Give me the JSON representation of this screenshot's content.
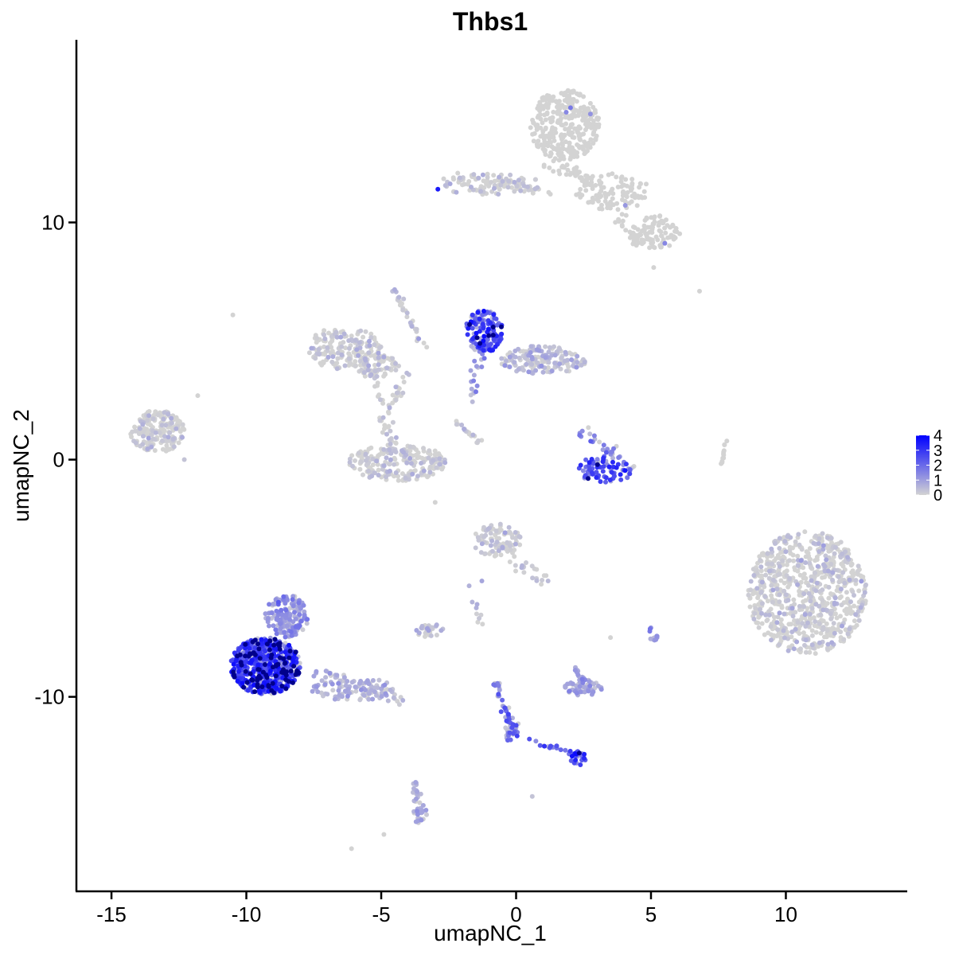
{
  "chart_data": {
    "type": "scatter",
    "title": "Thbs1",
    "xlabel": "umapNC_1",
    "ylabel": "umapNC_2",
    "xlim": [
      -16.3,
      14.5
    ],
    "ylim": [
      -18.2,
      17.7
    ],
    "x_ticks": [
      -15,
      -10,
      -5,
      0,
      5,
      10
    ],
    "x_tick_labels": [
      "-15",
      "-10",
      "-5",
      "0",
      "5",
      "10"
    ],
    "y_ticks": [
      -10,
      0,
      10
    ],
    "y_tick_labels": [
      "-10",
      "0",
      "10"
    ],
    "grid": false,
    "legend": {
      "position": "right",
      "values": [
        0,
        1,
        2,
        3,
        4
      ],
      "labels": [
        "0",
        "1",
        "2",
        "3",
        "4"
      ],
      "low_color": "#d3d3d3",
      "high_color": "#0000ff"
    },
    "colors": {
      "low": "#d3d3d3",
      "high": "#0000ff"
    },
    "clusters": [
      {
        "cx": 1.8,
        "cy": 14.1,
        "rx": 1.3,
        "ry": 1.5,
        "expr": 0.0,
        "count": 320
      },
      {
        "cx": -1.0,
        "cy": 11.6,
        "rx": 2.0,
        "ry": 0.45,
        "expr": 0.1,
        "count": 90
      },
      {
        "cx": 3.6,
        "cy": 11.3,
        "rx": 1.4,
        "ry": 0.8,
        "expr": 0.0,
        "count": 80
      },
      {
        "cx": 5.2,
        "cy": 9.6,
        "rx": 0.9,
        "ry": 0.7,
        "expr": 0.0,
        "count": 90
      },
      {
        "cx": 10.8,
        "cy": -5.6,
        "rx": 2.2,
        "ry": 2.6,
        "expr": 0.02,
        "count": 760
      },
      {
        "cx": -13.3,
        "cy": 1.2,
        "rx": 1.0,
        "ry": 0.9,
        "expr": 0.03,
        "count": 190
      },
      {
        "cx": -6.4,
        "cy": 4.7,
        "rx": 1.4,
        "ry": 0.9,
        "expr": 0.04,
        "count": 170
      },
      {
        "cx": -5.1,
        "cy": 3.9,
        "rx": 0.8,
        "ry": 0.5,
        "expr": 0.06,
        "count": 60
      },
      {
        "cx": -4.4,
        "cy": -0.1,
        "rx": 1.8,
        "ry": 0.8,
        "expr": 0.06,
        "count": 220
      },
      {
        "cx": -1.2,
        "cy": 5.4,
        "rx": 0.7,
        "ry": 0.9,
        "expr": 2.4,
        "count": 150
      },
      {
        "cx": 1.0,
        "cy": 4.2,
        "rx": 1.6,
        "ry": 0.6,
        "expr": 0.3,
        "count": 170
      },
      {
        "cx": 3.3,
        "cy": -0.4,
        "rx": 1.1,
        "ry": 0.55,
        "expr": 2.2,
        "count": 85
      },
      {
        "cx": -0.7,
        "cy": -3.4,
        "rx": 0.9,
        "ry": 0.7,
        "expr": 0.1,
        "count": 85
      },
      {
        "cx": -9.3,
        "cy": -8.7,
        "rx": 1.3,
        "ry": 1.2,
        "expr": 2.9,
        "count": 580
      },
      {
        "cx": -8.5,
        "cy": -6.6,
        "rx": 0.8,
        "ry": 0.9,
        "expr": 1.2,
        "count": 160
      },
      {
        "cx": -6.0,
        "cy": -9.7,
        "rx": 1.6,
        "ry": 0.45,
        "expr": 0.7,
        "count": 75
      },
      {
        "cx": -3.2,
        "cy": -7.2,
        "rx": 0.5,
        "ry": 0.3,
        "expr": 0.2,
        "count": 26
      },
      {
        "cx": 2.5,
        "cy": -9.6,
        "rx": 0.7,
        "ry": 0.35,
        "expr": 0.9,
        "count": 55
      },
      {
        "cx": 2.3,
        "cy": -12.6,
        "rx": 0.3,
        "ry": 0.3,
        "expr": 2.6,
        "count": 22
      },
      {
        "cx": -0.2,
        "cy": -11.3,
        "rx": 0.3,
        "ry": 0.6,
        "expr": 2.2,
        "count": 26
      },
      {
        "cx": -3.6,
        "cy": -14.9,
        "rx": 0.3,
        "ry": 0.5,
        "expr": 0.6,
        "count": 26
      },
      {
        "cx": 5.0,
        "cy": -7.4,
        "rx": 0.25,
        "ry": 0.4,
        "expr": 1.5,
        "count": 12
      }
    ],
    "paths": [
      {
        "x0": 1.3,
        "y0": 12.6,
        "x1": 2.8,
        "y1": 11.6,
        "spread": 0.3,
        "expr": 0.0,
        "count": 45
      },
      {
        "x0": -2.1,
        "y0": 11.9,
        "x1": 1.4,
        "y1": 11.3,
        "spread": 0.2,
        "expr": 0.0,
        "count": 32
      },
      {
        "x0": 3.0,
        "y0": 11.6,
        "x1": 4.5,
        "y1": 9.1,
        "spread": 0.3,
        "expr": 0.0,
        "count": 42
      },
      {
        "x0": -4.6,
        "y0": 7.3,
        "x1": -3.4,
        "y1": 4.7,
        "spread": 0.15,
        "expr": 0.3,
        "count": 28
      },
      {
        "x0": -5.3,
        "y0": 3.7,
        "x1": -4.6,
        "y1": 0.5,
        "spread": 0.25,
        "expr": 0.05,
        "count": 36
      },
      {
        "x0": -3.9,
        "y0": 3.9,
        "x1": -4.8,
        "y1": 1.9,
        "spread": 0.2,
        "expr": 0.05,
        "count": 22
      },
      {
        "x0": -1.7,
        "y0": 2.6,
        "x1": -1.1,
        "y1": 4.9,
        "spread": 0.2,
        "expr": 1.3,
        "count": 24
      },
      {
        "x0": -2.3,
        "y0": 1.6,
        "x1": -1.3,
        "y1": 0.7,
        "spread": 0.08,
        "expr": 0.1,
        "count": 18
      },
      {
        "x0": 2.5,
        "y0": 1.2,
        "x1": 3.8,
        "y1": 0.1,
        "spread": 0.2,
        "expr": 1.4,
        "count": 24
      },
      {
        "x0": 7.8,
        "y0": 0.9,
        "x1": 7.6,
        "y1": -0.3,
        "spread": 0.05,
        "expr": 0.0,
        "count": 12
      },
      {
        "x0": -0.6,
        "y0": -3.7,
        "x1": 1.1,
        "y1": -5.3,
        "spread": 0.3,
        "expr": 0.2,
        "count": 30
      },
      {
        "x0": -7.6,
        "y0": -8.9,
        "x1": -4.0,
        "y1": -10.2,
        "spread": 0.3,
        "expr": 0.6,
        "count": 55
      },
      {
        "x0": -0.8,
        "y0": -9.3,
        "x1": 0.0,
        "y1": -11.6,
        "spread": 0.15,
        "expr": 1.6,
        "count": 32
      },
      {
        "x0": 0.3,
        "y0": -11.8,
        "x1": 2.2,
        "y1": -12.4,
        "spread": 0.1,
        "expr": 1.9,
        "count": 18
      },
      {
        "x0": -3.7,
        "y0": -13.6,
        "x1": -3.7,
        "y1": -15.0,
        "spread": 0.12,
        "expr": 0.5,
        "count": 16
      },
      {
        "x0": 2.2,
        "y0": -8.8,
        "x1": 2.5,
        "y1": -9.3,
        "spread": 0.1,
        "expr": 1.0,
        "count": 12
      },
      {
        "x0": -1.4,
        "y0": -5.1,
        "x1": -1.4,
        "y1": -7.2,
        "spread": 0.3,
        "expr": 0.4,
        "count": 10
      }
    ],
    "points": [
      {
        "x": -10.5,
        "y": 6.1,
        "expr": 0.0
      },
      {
        "x": 6.8,
        "y": 7.1,
        "expr": 0.0
      },
      {
        "x": 5.1,
        "y": 8.1,
        "expr": 0.0
      },
      {
        "x": -2.9,
        "y": 11.4,
        "expr": 3.5
      },
      {
        "x": -3.0,
        "y": -1.8,
        "expr": 0.0
      },
      {
        "x": 0.6,
        "y": -14.2,
        "expr": 0.3
      },
      {
        "x": -6.1,
        "y": -16.4,
        "expr": 0.0
      },
      {
        "x": -4.9,
        "y": -15.8,
        "expr": 0.0
      },
      {
        "x": -12.3,
        "y": 0.0,
        "expr": 0.3
      },
      {
        "x": -11.8,
        "y": 2.7,
        "expr": 0.0
      },
      {
        "x": -8.9,
        "y": -8.7,
        "expr": 4.0
      },
      {
        "x": 3.5,
        "y": -7.5,
        "expr": 0.0
      }
    ]
  }
}
